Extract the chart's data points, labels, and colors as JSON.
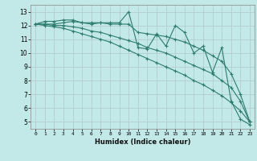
{
  "xlabel": "Humidex (Indice chaleur)",
  "bg_color": "#c2e8e8",
  "grid_color": "#b0c8c8",
  "line_color": "#2e7d6e",
  "x_ticks": [
    0,
    1,
    2,
    3,
    4,
    5,
    6,
    7,
    8,
    9,
    10,
    11,
    12,
    13,
    14,
    15,
    16,
    17,
    18,
    19,
    20,
    21,
    22,
    23
  ],
  "y_ticks": [
    5,
    6,
    7,
    8,
    9,
    10,
    11,
    12,
    13
  ],
  "ylim": [
    4.5,
    13.5
  ],
  "xlim": [
    -0.5,
    23.5
  ],
  "series": [
    [
      12.1,
      12.3,
      12.3,
      12.4,
      12.4,
      12.2,
      12.2,
      12.2,
      12.2,
      12.2,
      13.0,
      10.4,
      10.3,
      11.4,
      10.5,
      12.0,
      11.5,
      10.0,
      10.5,
      8.6,
      10.4,
      6.5,
      5.2,
      4.8
    ],
    [
      12.1,
      12.1,
      12.1,
      12.2,
      12.3,
      12.2,
      12.1,
      12.2,
      12.1,
      12.1,
      12.1,
      11.5,
      11.4,
      11.3,
      11.2,
      11.0,
      10.8,
      10.5,
      10.2,
      9.8,
      9.4,
      8.5,
      7.0,
      5.0
    ],
    [
      12.1,
      12.0,
      11.9,
      11.8,
      11.6,
      11.4,
      11.2,
      11.0,
      10.8,
      10.5,
      10.2,
      9.9,
      9.6,
      9.3,
      9.0,
      8.7,
      8.4,
      8.0,
      7.7,
      7.3,
      6.9,
      6.4,
      5.8,
      5.0
    ],
    [
      12.1,
      12.1,
      12.0,
      12.0,
      11.9,
      11.8,
      11.6,
      11.5,
      11.3,
      11.1,
      10.9,
      10.7,
      10.4,
      10.2,
      10.0,
      9.7,
      9.4,
      9.1,
      8.8,
      8.5,
      8.0,
      7.5,
      6.5,
      5.0
    ]
  ]
}
